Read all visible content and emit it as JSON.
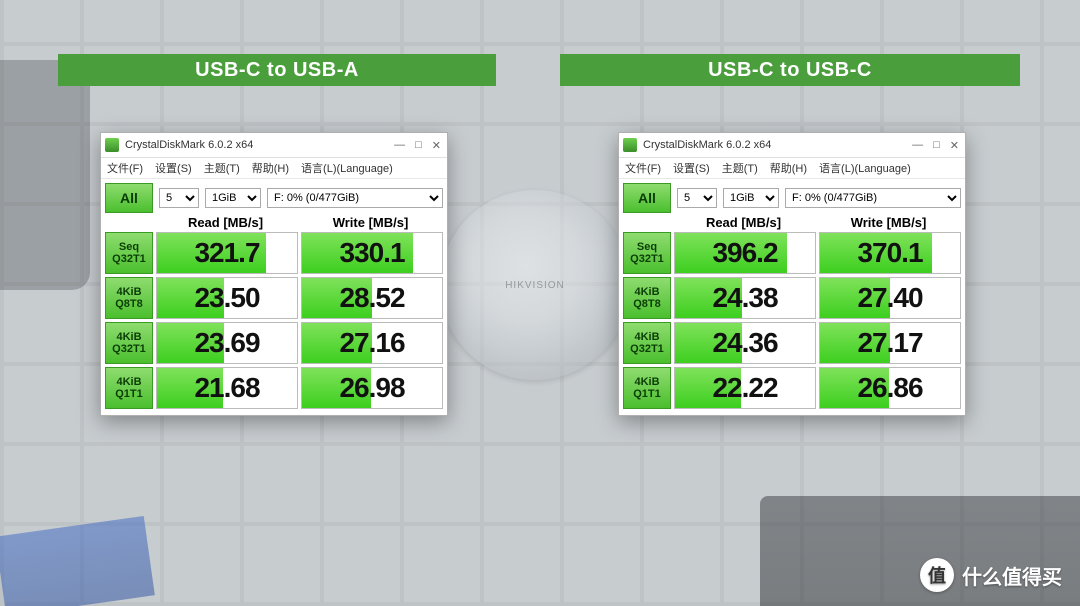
{
  "banners": {
    "left": "USB-C to USB-A",
    "right": "USB-C to USB-C"
  },
  "app": {
    "title": "CrystalDiskMark 6.0.2 x64",
    "menus": [
      "文件(F)",
      "设置(S)",
      "主题(T)",
      "帮助(H)",
      "语言(L)(Language)"
    ],
    "all_label": "All",
    "runs_value": "5",
    "size_value": "1GiB",
    "drive_value": "F: 0% (0/477GiB)",
    "read_header": "Read [MB/s]",
    "write_header": "Write [MB/s]",
    "row_labels": [
      {
        "l1": "Seq",
        "l2": "Q32T1"
      },
      {
        "l1": "4KiB",
        "l2": "Q8T8"
      },
      {
        "l1": "4KiB",
        "l2": "Q32T1"
      },
      {
        "l1": "4KiB",
        "l2": "Q1T1"
      }
    ]
  },
  "left": {
    "rows": [
      {
        "read": "321.7",
        "read_fill": 78,
        "write": "330.1",
        "write_fill": 79
      },
      {
        "read": "23.50",
        "read_fill": 48,
        "write": "28.52",
        "write_fill": 50
      },
      {
        "read": "23.69",
        "read_fill": 48,
        "write": "27.16",
        "write_fill": 50
      },
      {
        "read": "21.68",
        "read_fill": 47,
        "write": "26.98",
        "write_fill": 49
      }
    ]
  },
  "right": {
    "rows": [
      {
        "read": "396.2",
        "read_fill": 80,
        "write": "370.1",
        "write_fill": 80
      },
      {
        "read": "24.38",
        "read_fill": 48,
        "write": "27.40",
        "write_fill": 50
      },
      {
        "read": "24.36",
        "read_fill": 48,
        "write": "27.17",
        "write_fill": 50
      },
      {
        "read": "22.22",
        "read_fill": 47,
        "write": "26.86",
        "write_fill": 49
      }
    ]
  },
  "disc_label": "HIKVISION",
  "watermark": {
    "badge": "值",
    "text": "什么值得买"
  },
  "colors": {
    "banner_bg": "#4a9e3c",
    "button_green_top": "#8edc6f",
    "button_green_bottom": "#4bbf2e",
    "bar_green_top": "#7fe25a",
    "bar_green_bottom": "#3dcf1f"
  }
}
